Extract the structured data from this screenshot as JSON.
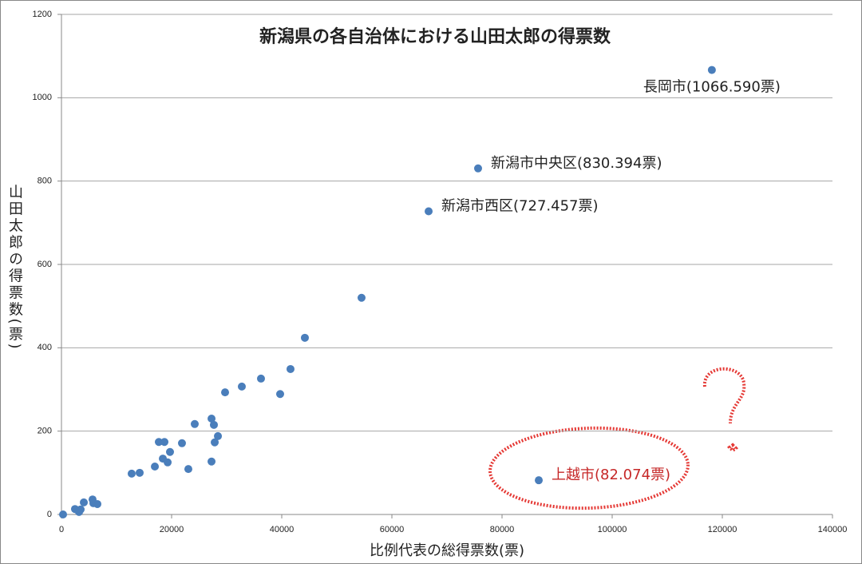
{
  "chart_data": {
    "type": "scatter",
    "title": "新潟県の各自治体における山田太郎の得票数",
    "xlabel": "比例代表の総得票数(票)",
    "ylabel": "山田太郎の得票数(票)",
    "x": [
      118100,
      75650,
      66670,
      54490,
      44200,
      41590,
      36230,
      39710,
      32750,
      29710,
      27250,
      27680,
      28410,
      27830,
      24200,
      21880,
      17680,
      18700,
      19710,
      18410,
      19280,
      16960,
      27250,
      23040,
      14200,
      12750,
      86670,
      4060,
      5800,
      6520,
      5650,
      2460,
      3480,
      3190,
      290
    ],
    "values": [
      1066.59,
      830.394,
      727.457,
      520,
      424,
      349,
      326,
      289,
      307,
      293,
      230,
      215,
      188,
      173,
      217,
      171,
      174,
      174,
      150,
      134,
      125,
      115,
      127,
      109,
      100,
      98,
      82.074,
      29,
      27,
      25,
      36,
      13,
      12,
      6,
      0
    ],
    "value_labels": [
      "長岡市(1066.590票)",
      "新潟市中央区(830.394票)",
      "新潟市西区(727.457票)",
      null,
      null,
      null,
      null,
      null,
      null,
      null,
      null,
      null,
      null,
      null,
      null,
      null,
      null,
      null,
      null,
      null,
      null,
      null,
      null,
      null,
      null,
      null,
      "上越市(82.074票)",
      null,
      null,
      null,
      null,
      null,
      null,
      null,
      null
    ],
    "value_label_colors": [
      "#222222",
      "#222222",
      "#222222",
      null,
      null,
      null,
      null,
      null,
      null,
      null,
      null,
      null,
      null,
      null,
      null,
      null,
      null,
      null,
      null,
      null,
      null,
      null,
      null,
      null,
      null,
      null,
      "#c62828",
      null,
      null,
      null,
      null,
      null,
      null,
      null,
      null
    ],
    "color": "#4a7ebb",
    "xlim": [
      0,
      140000
    ],
    "xticks": [
      0,
      20000,
      40000,
      60000,
      80000,
      100000,
      120000,
      140000
    ],
    "ylim": [
      0,
      1200
    ],
    "yticks": [
      0,
      200,
      400,
      600,
      800,
      1000,
      1200
    ],
    "grid": true
  }
}
